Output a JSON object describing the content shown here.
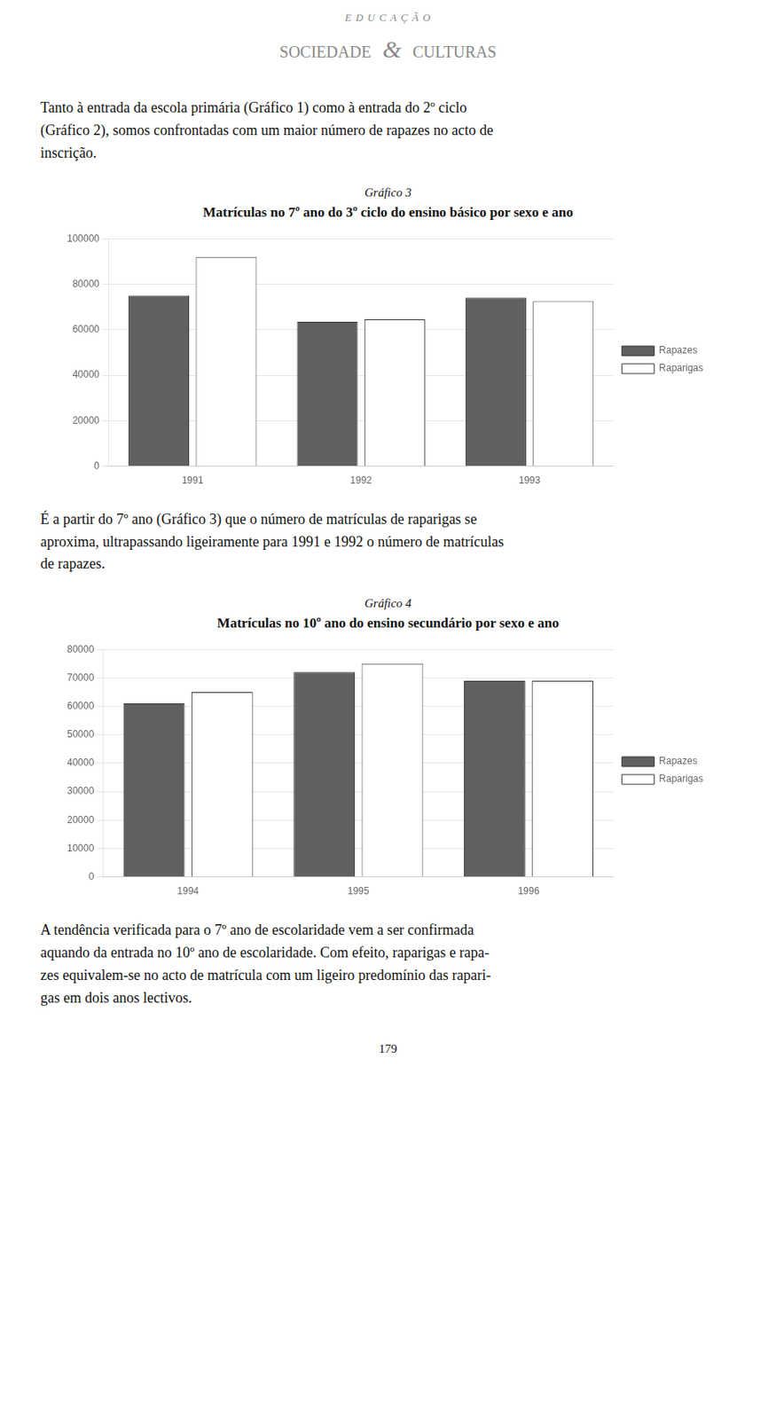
{
  "header": [
    "E D U C A Ç Ã O",
    "SOCIEDADE",
    "&",
    "CULTURAS"
  ],
  "intro_text": [
    "Tanto à entrada da escola primária (Gráfico 1) como à entrada do 2º ciclo",
    "(Gráfico 2), somos confrontadas com um maior número de rapazes no acto de",
    "inscrição."
  ],
  "mid_text": [
    "É a partir do 7º ano (Gráfico 3) que o número de matrículas de raparigas se",
    "aproxima, ultrapassando ligeiramente para 1991 e 1992 o número de matrículas",
    "de rapazes."
  ],
  "end_text": [
    "A tendência verificada para o 7º ano de escolaridade vem a ser confirmada",
    "aquando da entrada no 10º ano de escolaridade. Com efeito, raparigas e rapa-",
    "zes equivalem-se no acto de matrícula com um ligeiro predomínio das rapari-",
    "gas em dois anos lectivos."
  ],
  "footer": "179",
  "chart_data": [
    {
      "type": "bar",
      "subtitle": "Gráfico 3",
      "title": "Matrículas no 7º ano do 3º ciclo do ensino básico por sexo e ano",
      "categories": [
        "1991",
        "1992",
        "1993"
      ],
      "series": [
        {
          "name": "Rapazes",
          "color": "#606060",
          "values": [
            75000,
            63500,
            74000
          ]
        },
        {
          "name": "Raparigas",
          "color": "#ffffff",
          "values": [
            92000,
            64500,
            72500
          ]
        }
      ],
      "ylim": [
        0,
        100000
      ],
      "yticks": [
        0,
        20000,
        40000,
        60000,
        80000,
        100000
      ],
      "grid": true,
      "legend": "right"
    },
    {
      "type": "bar",
      "subtitle": "Gráfico 4",
      "title": "Matrículas no 10º ano do ensino secundário por sexo e ano",
      "categories": [
        "1994",
        "1995",
        "1996"
      ],
      "series": [
        {
          "name": "Rapazes",
          "color": "#606060",
          "values": [
            61000,
            72000,
            69000
          ]
        },
        {
          "name": "Raparigas",
          "color": "#ffffff",
          "values": [
            65000,
            75000,
            69000
          ]
        }
      ],
      "ylim": [
        0,
        80000
      ],
      "yticks": [
        0,
        10000,
        20000,
        30000,
        40000,
        50000,
        60000,
        70000,
        80000
      ],
      "grid": true,
      "legend": "right"
    }
  ]
}
